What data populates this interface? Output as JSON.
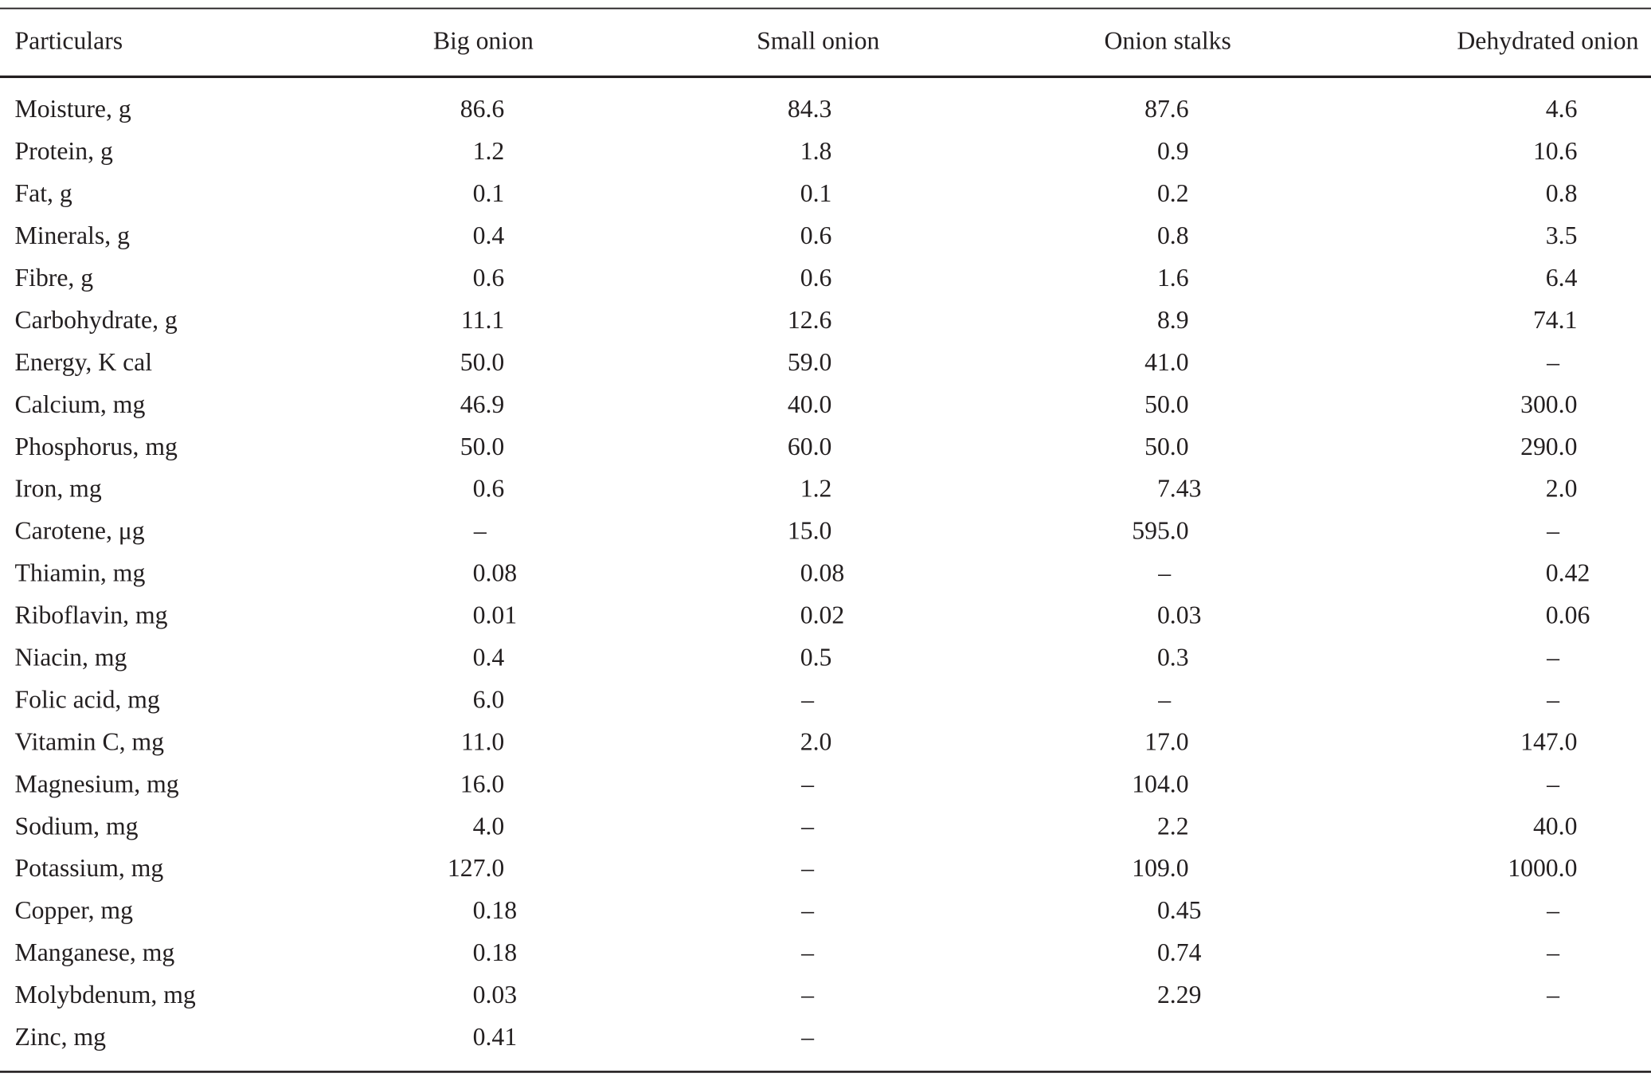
{
  "table": {
    "header": [
      "Particulars",
      "Big onion",
      "Small onion",
      "Onion stalks",
      "Dehydrated onion"
    ],
    "rows": [
      [
        "Moisture, g",
        "86.6",
        "84.3",
        "87.6",
        "4.6"
      ],
      [
        "Protein, g",
        "1.2",
        "1.8",
        "0.9",
        "10.6"
      ],
      [
        "Fat, g",
        "0.1",
        "0.1",
        "0.2",
        "0.8"
      ],
      [
        "Minerals, g",
        "0.4",
        "0.6",
        "0.8",
        "3.5"
      ],
      [
        "Fibre, g",
        "0.6",
        "0.6",
        "1.6",
        "6.4"
      ],
      [
        "Carbohydrate, g",
        "11.1",
        "12.6",
        "8.9",
        "74.1"
      ],
      [
        "Energy, K cal",
        "50.0",
        "59.0",
        "41.0",
        "–"
      ],
      [
        "Calcium, mg",
        "46.9",
        "40.0",
        "50.0",
        "300.0"
      ],
      [
        "Phosphorus, mg",
        "50.0",
        "60.0",
        "50.0",
        "290.0"
      ],
      [
        "Iron, mg",
        "0.6",
        "1.2",
        "7.43",
        "2.0"
      ],
      [
        "Carotene, μg",
        "–",
        "15.0",
        "595.0",
        "–"
      ],
      [
        "Thiamin, mg",
        "0.08",
        "0.08",
        "–",
        "0.42"
      ],
      [
        "Riboflavin, mg",
        "0.01",
        "0.02",
        "0.03",
        "0.06"
      ],
      [
        "Niacin, mg",
        "0.4",
        "0.5",
        "0.3",
        "–"
      ],
      [
        "Folic acid, mg",
        "6.0",
        "–",
        "–",
        "–"
      ],
      [
        "Vitamin C, mg",
        "11.0",
        "2.0",
        "17.0",
        "147.0"
      ],
      [
        "Magnesium, mg",
        "16.0",
        "–",
        "104.0",
        "–"
      ],
      [
        "Sodium, mg",
        "4.0",
        "–",
        "2.2",
        "40.0"
      ],
      [
        "Potassium, mg",
        "127.0",
        "–",
        "109.0",
        "1000.0"
      ],
      [
        "Copper, mg",
        "0.18",
        "–",
        "0.45",
        "–"
      ],
      [
        "Manganese, mg",
        "0.18",
        "–",
        "0.74",
        "–"
      ],
      [
        "Molybdenum, mg",
        "0.03",
        "–",
        "2.29",
        "–"
      ],
      [
        "Zinc, mg",
        "0.41",
        "–",
        null,
        null
      ]
    ]
  }
}
